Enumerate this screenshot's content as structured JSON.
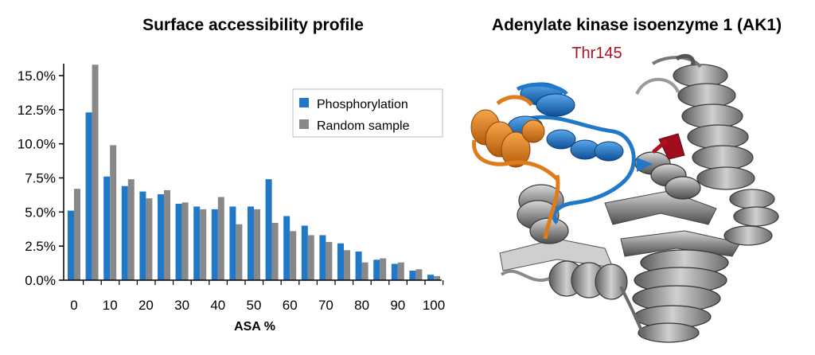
{
  "chart_data": {
    "type": "bar",
    "title": "Surface accessibility profile",
    "xlabel": "ASA %",
    "ylabel": "",
    "ylim": [
      0,
      0.16
    ],
    "y_ticks": [
      "0.0%",
      "2.5%",
      "5.0%",
      "7.5%",
      "10.0%",
      "12.5%",
      "15.0%"
    ],
    "x_ticks": [
      "0",
      "10",
      "20",
      "30",
      "40",
      "50",
      "60",
      "70",
      "80",
      "90",
      "100"
    ],
    "categories": [
      0,
      5,
      10,
      15,
      20,
      25,
      30,
      35,
      40,
      45,
      50,
      55,
      60,
      65,
      70,
      75,
      80,
      85,
      90,
      95,
      100
    ],
    "series": [
      {
        "name": "Phosphorylation",
        "color": "#1f78c8",
        "values": [
          0.051,
          0.123,
          0.076,
          0.069,
          0.065,
          0.063,
          0.056,
          0.054,
          0.052,
          0.054,
          0.054,
          0.074,
          0.047,
          0.04,
          0.033,
          0.027,
          0.021,
          0.015,
          0.012,
          0.007,
          0.004
        ]
      },
      {
        "name": "Random sample",
        "color": "#888888",
        "values": [
          0.067,
          0.158,
          0.099,
          0.074,
          0.06,
          0.066,
          0.057,
          0.052,
          0.061,
          0.041,
          0.052,
          0.042,
          0.036,
          0.033,
          0.028,
          0.022,
          0.013,
          0.016,
          0.013,
          0.008,
          0.003
        ]
      }
    ],
    "legend_position": "top-right",
    "grid": false
  },
  "structure_panel": {
    "title": "Adenylate kinase isoenzyme 1 (AK1)",
    "residue_label": "Thr145",
    "highlight_colors": {
      "residue": "#b01020",
      "helix_blue": "#1f78c8",
      "helix_orange": "#e07b1a",
      "body_gray": "#8a8a8a"
    },
    "icon": "protein-ribbon-icon"
  }
}
